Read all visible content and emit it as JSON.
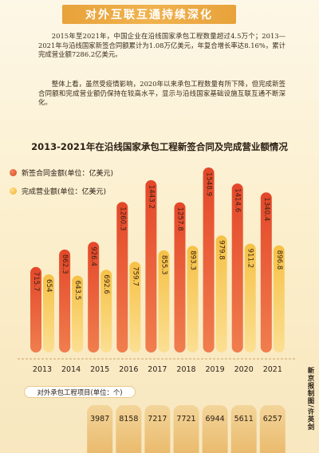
{
  "header": {
    "title": "对外互联互通持续深化"
  },
  "article": {
    "paragraph1": "2015年至2021年，中国企业在沿线国家承包工程数量超过4.5万个；2013—2021年与沿线国家新签合同额累计为1.08万亿美元，年复合增长率达8.16%，累计完成营业额7286.2亿美元。",
    "paragraph2": "整体上看，虽然受疫情影响，2020年以来承包工程数量有所下降，但完成新签合同额和完成营业额仍保持在较高水平，显示与沿线国家基础设施互联互通不断深化。"
  },
  "chart_data": {
    "type": "bar",
    "title": "2013-2021年在沿线国家承包工程新签合同及完成营业额情况",
    "categories": [
      "2013",
      "2014",
      "2015",
      "2016",
      "2017",
      "2018",
      "2019",
      "2020",
      "2021"
    ],
    "series": [
      {
        "name": "新签合同金额(单位：亿美元)",
        "values": [
          715.7,
          862.3,
          926.4,
          1260.3,
          1443.2,
          1257.8,
          1548.9,
          1414.6,
          1340.4
        ],
        "labels": [
          "715.7",
          "862.3",
          "926.4",
          "1260.3",
          "1443.2",
          "1257.8",
          "1548.9",
          "1414.6",
          "1340.4"
        ],
        "color": "#e5502a"
      },
      {
        "name": "完成营业额(单位：亿美元)",
        "values": [
          654,
          643.5,
          692.6,
          759.7,
          855.3,
          893.3,
          979.8,
          911.2,
          896.8
        ],
        "labels": [
          "654",
          "643.5",
          "692.6",
          "759.7",
          "855.3",
          "893.3",
          "979.8",
          "911.2",
          "896.8"
        ],
        "color": "#f5bc3d"
      }
    ],
    "projects": {
      "label": "对外承包工程项目(单位：个)",
      "categories": [
        "2015",
        "2016",
        "2017",
        "2018",
        "2019",
        "2020",
        "2021"
      ],
      "values": [
        3987,
        8158,
        7217,
        7721,
        6944,
        5611,
        6257
      ],
      "labels": [
        "3987",
        "8158",
        "7217",
        "7721",
        "6944",
        "5611",
        "6257"
      ]
    }
  },
  "source": "新京报制图/许英剑"
}
